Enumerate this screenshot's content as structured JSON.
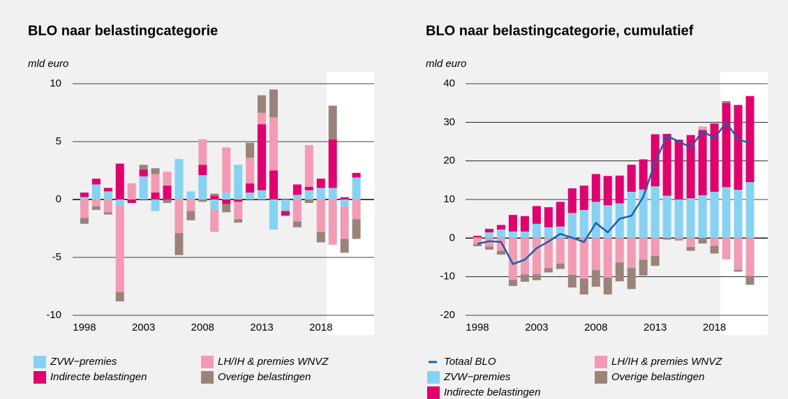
{
  "chart_data": [
    {
      "type": "bar",
      "title": "BLO naar belastingcategorie",
      "y_label": "mld euro",
      "x": [
        1998,
        1999,
        2000,
        2001,
        2002,
        2003,
        2004,
        2005,
        2006,
        2007,
        2008,
        2009,
        2010,
        2011,
        2012,
        2013,
        2014,
        2015,
        2016,
        2017,
        2018,
        2019,
        2020,
        2021
      ],
      "xlim": [
        1997,
        2022.5
      ],
      "xticks": [
        1998,
        2003,
        2008,
        2013,
        2018
      ],
      "ylim": [
        -10,
        10
      ],
      "yticks": [
        -10,
        -5,
        0,
        5,
        10
      ],
      "grid": true,
      "highlight_xlim": [
        2018.5,
        2022.5
      ],
      "series": [
        {
          "name": "ZVW−premies",
          "color": "#86d2f3",
          "values": [
            0.2,
            1.3,
            0.7,
            -0.5,
            0,
            2.0,
            -1.0,
            0,
            3.5,
            0.7,
            2.1,
            -0.9,
            0.6,
            3.0,
            0.6,
            0.8,
            -2.6,
            -1.0,
            0.4,
            0.8,
            1.0,
            1.0,
            -0.6,
            1.9
          ]
        },
        {
          "name": "Indirecte belastingen",
          "color": "#e2006e",
          "values": [
            0.4,
            0.5,
            0.3,
            3.1,
            -0.3,
            0.6,
            0.6,
            1.2,
            0,
            0,
            0.9,
            0.3,
            -0.4,
            -0.2,
            0.8,
            5.7,
            2.5,
            -0.4,
            0.9,
            0.3,
            0.8,
            4.2,
            0.2,
            0.4
          ]
        },
        {
          "name": "LH/IH & premies WNVZ",
          "color": "#f39bb4",
          "values": [
            -1.6,
            -0.6,
            -1.1,
            -7.5,
            1.4,
            0,
            1.6,
            1.2,
            -2.9,
            -1.0,
            2.2,
            -1.9,
            3.9,
            -1.5,
            2.2,
            1.0,
            4.6,
            0,
            -1.9,
            3.6,
            -2.8,
            -3.9,
            -2.8,
            -1.7
          ]
        },
        {
          "name": "Overige belastingen",
          "color": "#9a8479",
          "values": [
            -0.5,
            -0.3,
            -0.2,
            -0.8,
            0,
            0.4,
            0.5,
            -0.3,
            -1.9,
            -0.8,
            -0.2,
            0.2,
            -0.7,
            -0.3,
            1.3,
            1.5,
            2.4,
            0,
            -0.5,
            -0.3,
            -0.9,
            2.9,
            -1.2,
            -1.7
          ]
        }
      ]
    },
    {
      "type": "bar",
      "title": "BLO naar belastingcategorie, cumulatief",
      "y_label": "mld euro",
      "x": [
        1998,
        1999,
        2000,
        2001,
        2002,
        2003,
        2004,
        2005,
        2006,
        2007,
        2008,
        2009,
        2010,
        2011,
        2012,
        2013,
        2014,
        2015,
        2016,
        2017,
        2018,
        2019,
        2020,
        2021
      ],
      "xlim": [
        1997,
        2022.5
      ],
      "xticks": [
        1998,
        2003,
        2008,
        2013,
        2018
      ],
      "ylim": [
        -20,
        40
      ],
      "yticks": [
        -20,
        -10,
        0,
        10,
        20,
        30,
        40
      ],
      "grid": true,
      "highlight_xlim": [
        2018.5,
        2022.5
      ],
      "series": [
        {
          "name": "ZVW−premies",
          "color": "#86d2f3",
          "values": [
            0.2,
            1.5,
            2.2,
            1.7,
            1.7,
            3.7,
            2.8,
            3.0,
            6.5,
            7.3,
            9.4,
            8.5,
            9.0,
            12.0,
            12.6,
            13.4,
            11.0,
            10.0,
            10.3,
            11.1,
            12.0,
            13.2,
            12.5,
            14.5
          ]
        },
        {
          "name": "Indirecte belastingen",
          "color": "#e2006e",
          "values": [
            0.4,
            0.9,
            1.2,
            4.3,
            4.0,
            4.6,
            5.2,
            6.4,
            6.4,
            6.3,
            7.2,
            7.6,
            7.2,
            7.0,
            7.8,
            13.5,
            16.0,
            15.5,
            16.4,
            16.9,
            17.7,
            21.8,
            22.0,
            22.3
          ]
        },
        {
          "name": "LH/IH & premies WNVZ",
          "color": "#f39bb4",
          "values": [
            -1.6,
            -2.2,
            -3.3,
            -10.8,
            -9.4,
            -9.4,
            -7.8,
            -6.6,
            -9.5,
            -10.5,
            -8.3,
            -10.2,
            -6.3,
            -7.8,
            -5.6,
            -4.6,
            0,
            -0.3,
            -2.3,
            0.9,
            -2.0,
            -5.5,
            -8.2,
            -9.8
          ]
        },
        {
          "name": "Overige belastingen",
          "color": "#9a8479",
          "values": [
            -0.5,
            -0.8,
            -1.0,
            -1.6,
            -1.9,
            -1.5,
            -1.1,
            -1.4,
            -3.3,
            -4.1,
            -4.3,
            -4.4,
            -4.9,
            -5.4,
            -4.1,
            -2.6,
            -0.4,
            -0.3,
            -1.0,
            -1.4,
            -2.0,
            0.5,
            -0.5,
            -2.3
          ]
        },
        {
          "name": "Totaal BLO",
          "color": "#1b5faa",
          "mark": "line",
          "values": [
            -1.5,
            -0.8,
            -1.0,
            -6.7,
            -5.6,
            -2.6,
            -0.9,
            1.1,
            0.1,
            -1.0,
            3.9,
            1.5,
            5.0,
            5.8,
            10.7,
            19.7,
            26.5,
            25.0,
            23.5,
            27.7,
            25.9,
            30.0,
            25.6,
            24.6
          ]
        }
      ]
    }
  ]
}
